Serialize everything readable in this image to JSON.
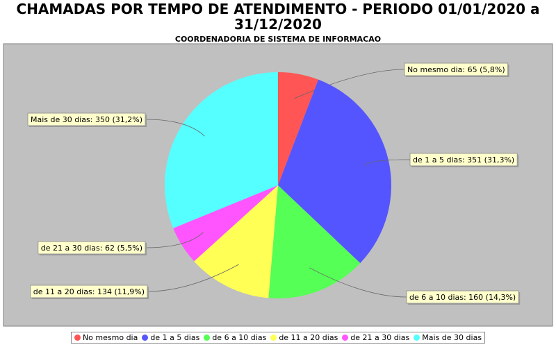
{
  "chart_data": {
    "type": "pie",
    "title": "CHAMADAS POR TEMPO DE ATENDIMENTO - PERIODO 01/01/2020 a 31/12/2020",
    "subtitle": "COORDENADORIA DE SISTEMA DE INFORMACAO",
    "categories": [
      "No mesmo dia",
      "de 1 a 5 dias",
      "de 6 a 10 dias",
      "de 11 a 20 dias",
      "de 21 a 30 dias",
      "Mais de 30 dias"
    ],
    "values": [
      65,
      351,
      160,
      134,
      62,
      350
    ],
    "value_labels": [
      "No mesmo dia: 65 (5,8%)",
      "de 1 a 5 dias: 351 (31,3%)",
      "de 6 a 10 dias: 160 (14,3%)",
      "de 11 a 20 dias: 134 (11,9%)",
      "de 21 a 30 dias: 62 (5,5%)",
      "Mais de 30 dias: 350 (31,2%)"
    ],
    "colors": [
      "#ff5555",
      "#5555ff",
      "#55ff55",
      "#ffff55",
      "#ff55ff",
      "#55ffff"
    ],
    "legend": "bottom"
  }
}
